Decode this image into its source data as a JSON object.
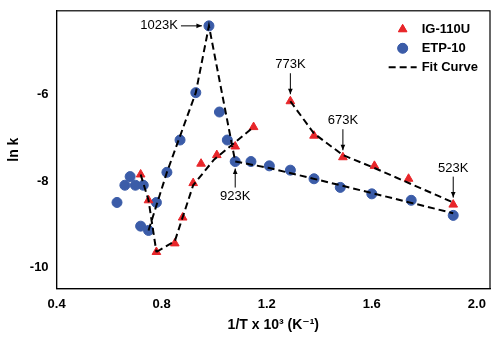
{
  "chart_data": {
    "type": "scatter",
    "x_label": "1/T x 10³ (K⁻¹)",
    "y_label": "ln k",
    "xlim": [
      0.4,
      2.05
    ],
    "ylim": [
      -10.5,
      -4.05
    ],
    "xticks": [
      0.4,
      0.8,
      1.2,
      1.6,
      {
        "value": 2,
        "label": "2.0"
      }
    ],
    "yticks": [
      -10,
      -8,
      -6
    ],
    "grid": false,
    "legend": "upper right",
    "series": [
      {
        "name": "IG-110U",
        "color": "#e8262a",
        "marker": "triangle",
        "x": [
          0.72,
          0.75,
          0.78,
          0.85,
          0.88,
          0.92,
          0.95,
          1.01,
          1.08,
          1.15,
          1.29,
          1.38,
          1.49,
          1.61,
          1.74,
          1.91
        ],
        "values": [
          -7.85,
          -8.45,
          -9.65,
          -9.45,
          -8.85,
          -8.05,
          -7.6,
          -7.4,
          -7.2,
          -6.75,
          -6.15,
          -6.95,
          -7.45,
          -7.65,
          -7.95,
          -8.55
        ]
      },
      {
        "name": "ETP-10",
        "color": "#3b5ca8",
        "marker": "circle",
        "x": [
          0.63,
          0.66,
          0.68,
          0.7,
          0.73,
          0.72,
          0.75,
          0.78,
          0.82,
          0.87,
          0.93,
          0.98,
          1.02,
          1.05,
          1.08,
          1.14,
          1.21,
          1.29,
          1.38,
          1.48,
          1.6,
          1.75,
          1.91
        ],
        "values": [
          -8.5,
          -8.1,
          -7.9,
          -8.1,
          -8.1,
          -9.05,
          -9.15,
          -8.5,
          -7.8,
          -7.05,
          -5.95,
          -4.4,
          -6.4,
          -7.05,
          -7.55,
          -7.55,
          -7.65,
          -7.75,
          -7.95,
          -8.15,
          -8.3,
          -8.45,
          -8.8
        ]
      },
      {
        "name": "Fit Curve",
        "color": "#000000",
        "line_style": "dashed",
        "x": [
          0.72,
          0.75,
          0.78,
          null,
          0.78,
          0.85,
          0.92,
          1.0,
          1.15,
          null,
          1.29,
          1.38,
          1.49,
          1.61,
          1.91,
          null,
          0.75,
          0.82,
          0.93,
          0.98,
          1.08,
          1.21,
          1.48,
          1.91
        ],
        "values": [
          -7.85,
          -8.45,
          -9.65,
          null,
          -9.65,
          -9.4,
          -8.1,
          -7.5,
          -6.75,
          null,
          -6.15,
          -6.9,
          -7.4,
          -7.7,
          -8.5,
          null,
          -9.15,
          -7.8,
          -5.95,
          -4.4,
          -7.55,
          -7.7,
          -8.1,
          -8.75
        ]
      }
    ],
    "annotations": [
      {
        "text": "1023K",
        "x": 0.98,
        "y": -4.4
      },
      {
        "text": "773K",
        "x": 1.29,
        "y": -6.15
      },
      {
        "text": "673K",
        "x": 1.49,
        "y": -7.45
      },
      {
        "text": "523K",
        "x": 1.91,
        "y": -8.55
      },
      {
        "text": "923K",
        "x": 1.08,
        "y": -7.55
      }
    ]
  }
}
